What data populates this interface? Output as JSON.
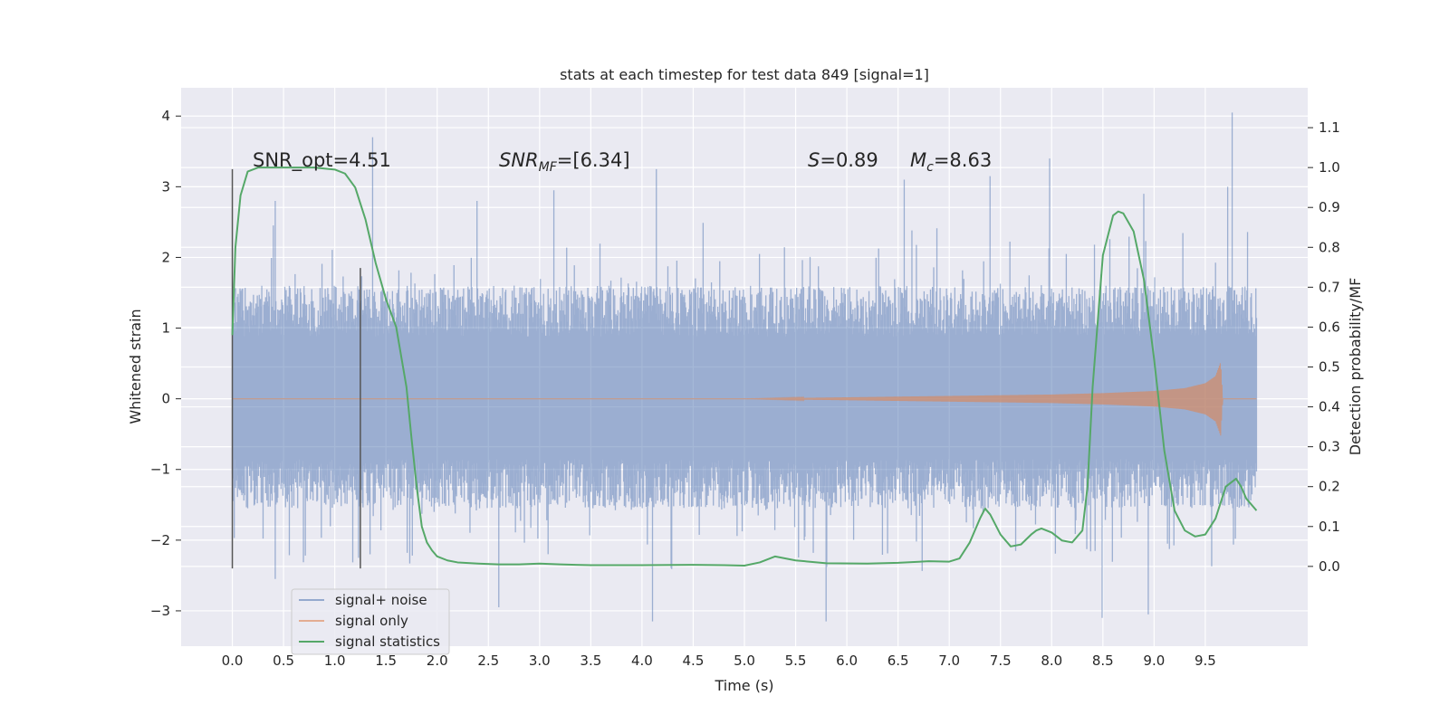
{
  "chart_data": {
    "type": "line",
    "title": "stats at each timestep for test data 849 [signal=1]",
    "xlabel": "Time (s)",
    "ylabel": "Whitened strain",
    "y2label": "Detection probability/MF",
    "xlim": [
      -0.5,
      10.5
    ],
    "ylim": [
      -3.5,
      4.4
    ],
    "y2lim": [
      -0.2,
      1.2
    ],
    "xticks": [
      "0.0",
      "0.5",
      "1.0",
      "1.5",
      "2.0",
      "2.5",
      "3.0",
      "3.5",
      "4.0",
      "4.5",
      "5.0",
      "5.5",
      "6.0",
      "6.5",
      "7.0",
      "7.5",
      "8.0",
      "8.5",
      "9.0",
      "9.5"
    ],
    "yticks": [
      "4",
      "3",
      "2",
      "1",
      "0",
      "−1",
      "−2",
      "−3"
    ],
    "y2ticks": [
      "1.1",
      "1.0",
      "0.9",
      "0.8",
      "0.7",
      "0.6",
      "0.5",
      "0.4",
      "0.3",
      "0.2",
      "0.1",
      "0.0"
    ],
    "grid": true,
    "legend_position": "lower-left",
    "colors": {
      "signal_noise": "#4c72b0",
      "signal_only": "#dd8452",
      "statistics": "#55a868",
      "vline": "#555555",
      "background": "#eaeaf2"
    },
    "annotations": {
      "snr_opt": "SNR_opt=4.51",
      "snr_mf_main": "SNR",
      "snr_mf_sub": "MF",
      "snr_mf_value": "=[6.34]",
      "s_symbol": "S",
      "s_value": "=0.89",
      "mc_main": "M",
      "mc_sub": "c",
      "mc_value": "=8.63"
    },
    "vertical_lines": [
      {
        "x": 0.0,
        "y_range": [
          -2.4,
          3.25
        ]
      },
      {
        "x": 1.25,
        "y_range": [
          -2.4,
          1.85
        ]
      }
    ],
    "series": [
      {
        "name": "signal+ noise",
        "axis": "left",
        "style": "noise",
        "x_range": [
          0.0,
          10.0
        ],
        "typical_band": [
          -1.55,
          1.6
        ],
        "peaks": [
          {
            "x": 1.37,
            "y": 3.7
          },
          {
            "x": 9.76,
            "y": 4.05
          },
          {
            "x": 4.14,
            "y": 3.25
          },
          {
            "x": 7.98,
            "y": 3.4
          },
          {
            "x": 6.56,
            "y": 3.1
          },
          {
            "x": 7.4,
            "y": 3.15
          },
          {
            "x": 3.14,
            "y": 2.95
          },
          {
            "x": 2.39,
            "y": 2.8
          },
          {
            "x": 9.72,
            "y": 3.0
          },
          {
            "x": 8.9,
            "y": 2.9
          },
          {
            "x": 0.42,
            "y": 2.8
          },
          {
            "x": 4.1,
            "y": -3.15
          },
          {
            "x": 8.49,
            "y": -3.1
          },
          {
            "x": 8.94,
            "y": -3.05
          },
          {
            "x": 2.6,
            "y": -2.95
          },
          {
            "x": 5.8,
            "y": -3.15
          },
          {
            "x": 0.42,
            "y": -2.55
          }
        ]
      },
      {
        "name": "signal only",
        "axis": "left",
        "style": "chirp",
        "x": [
          0.0,
          5.0,
          6.0,
          7.0,
          8.0,
          8.5,
          9.0,
          9.3,
          9.5,
          9.6,
          9.65,
          9.67,
          10.0
        ],
        "y_envelope": [
          0.0,
          0.0,
          0.02,
          0.04,
          0.06,
          0.08,
          0.11,
          0.15,
          0.22,
          0.32,
          0.52,
          0.0,
          0.0
        ]
      },
      {
        "name": "signal statistics",
        "axis": "right",
        "style": "line",
        "x": [
          0.0,
          0.03,
          0.08,
          0.15,
          0.25,
          0.4,
          0.6,
          0.8,
          1.0,
          1.1,
          1.2,
          1.3,
          1.4,
          1.5,
          1.6,
          1.7,
          1.75,
          1.8,
          1.85,
          1.9,
          1.95,
          2.0,
          2.1,
          2.2,
          2.4,
          2.6,
          2.8,
          3.0,
          3.2,
          3.5,
          4.0,
          4.5,
          4.8,
          5.0,
          5.15,
          5.3,
          5.5,
          5.8,
          6.2,
          6.5,
          6.8,
          7.0,
          7.1,
          7.2,
          7.3,
          7.35,
          7.4,
          7.5,
          7.6,
          7.7,
          7.8,
          7.85,
          7.9,
          8.0,
          8.1,
          8.2,
          8.3,
          8.35,
          8.4,
          8.5,
          8.6,
          8.65,
          8.7,
          8.8,
          8.9,
          9.0,
          9.1,
          9.2,
          9.3,
          9.4,
          9.5,
          9.6,
          9.7,
          9.8,
          9.85,
          9.9,
          10.0
        ],
        "y": [
          0.58,
          0.8,
          0.93,
          0.99,
          1.0,
          1.0,
          1.0,
          1.0,
          0.995,
          0.985,
          0.95,
          0.87,
          0.76,
          0.67,
          0.6,
          0.45,
          0.32,
          0.2,
          0.1,
          0.06,
          0.04,
          0.025,
          0.015,
          0.01,
          0.007,
          0.005,
          0.005,
          0.007,
          0.005,
          0.003,
          0.003,
          0.004,
          0.003,
          0.002,
          0.01,
          0.025,
          0.015,
          0.008,
          0.007,
          0.009,
          0.013,
          0.012,
          0.02,
          0.06,
          0.12,
          0.145,
          0.13,
          0.08,
          0.05,
          0.055,
          0.08,
          0.09,
          0.095,
          0.085,
          0.065,
          0.06,
          0.09,
          0.2,
          0.45,
          0.78,
          0.88,
          0.89,
          0.885,
          0.84,
          0.72,
          0.52,
          0.29,
          0.14,
          0.09,
          0.075,
          0.08,
          0.12,
          0.2,
          0.22,
          0.2,
          0.17,
          0.14
        ]
      }
    ],
    "legend": [
      "signal+ noise",
      "signal only",
      "signal statistics"
    ]
  }
}
